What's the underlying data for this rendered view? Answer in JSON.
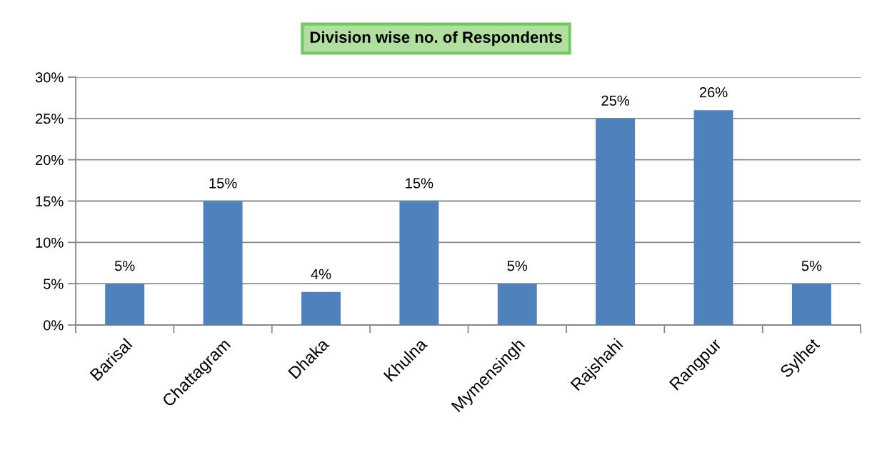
{
  "chart_data": {
    "type": "bar",
    "title": "Division wise no. of Respondents",
    "categories": [
      "Barisal",
      "Chattagram",
      "Dhaka",
      "Khulna",
      "Mymensingh",
      "Rajshahi",
      "Rangpur",
      "Sylhet"
    ],
    "values": [
      5,
      15,
      4,
      15,
      5,
      25,
      26,
      5
    ],
    "value_labels": [
      "5%",
      "15%",
      "4%",
      "15%",
      "5%",
      "25%",
      "26%",
      "5%"
    ],
    "color": "#4f81bd",
    "ylim": [
      0,
      30
    ],
    "yticks": [
      {
        "value": 0,
        "label": "0%"
      },
      {
        "value": 5,
        "label": "5%"
      },
      {
        "value": 10,
        "label": "10%"
      },
      {
        "value": 15,
        "label": "15%"
      },
      {
        "value": 20,
        "label": "20%"
      },
      {
        "value": 25,
        "label": "25%"
      },
      {
        "value": 30,
        "label": "30%"
      }
    ],
    "grid": "y",
    "legend": false
  }
}
